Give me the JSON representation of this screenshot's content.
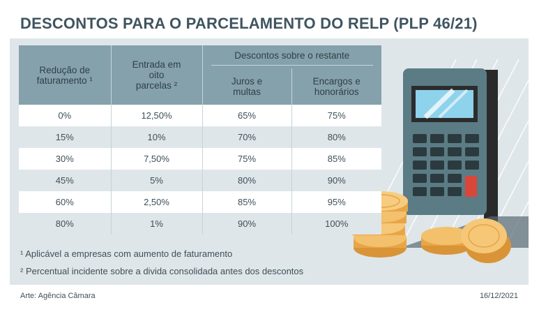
{
  "title": "DESCONTOS PARA O PARCELAMENTO DO RELP (PLP 46/21)",
  "table": {
    "headers": {
      "reducao": "Redução de faturamento ¹",
      "entrada": "Entrada em oito parcelas ²",
      "descontos_group": "Descontos sobre o restante",
      "juros": "Juros e multas",
      "encargos": "Encargos e honorários"
    },
    "rows": [
      {
        "reducao": "0%",
        "entrada": "12,50%",
        "juros": "65%",
        "encargos": "75%"
      },
      {
        "reducao": "15%",
        "entrada": "10%",
        "juros": "70%",
        "encargos": "80%"
      },
      {
        "reducao": "30%",
        "entrada": "7,50%",
        "juros": "75%",
        "encargos": "85%"
      },
      {
        "reducao": "45%",
        "entrada": "5%",
        "juros": "80%",
        "encargos": "90%"
      },
      {
        "reducao": "60%",
        "entrada": "2,50%",
        "juros": "85%",
        "encargos": "95%"
      },
      {
        "reducao": "80%",
        "entrada": "1%",
        "juros": "90%",
        "encargos": "100%"
      }
    ]
  },
  "footnotes": [
    "¹ Aplicável a empresas com aumento de faturamento",
    "² Percentual incidente sobre a divida consolidada antes dos descontos"
  ],
  "credit": "Arte: Agência Câmara",
  "date": "16/12/2021",
  "illustration": {
    "calculator": "calculator-icon",
    "coins": "coins-icon"
  },
  "colors": {
    "header": "#85a1ab",
    "panel": "#dfe6e9",
    "calculator": "#5b7c85",
    "coin": "#f0b55c"
  }
}
